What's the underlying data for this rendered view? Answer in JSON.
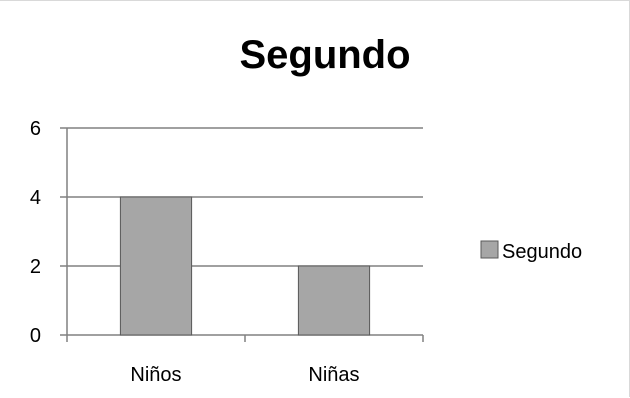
{
  "chart_data": {
    "type": "bar",
    "title": "Segundo",
    "categories": [
      "Niños",
      "Niñas"
    ],
    "series": [
      {
        "name": "Segundo",
        "values": [
          4,
          2
        ]
      }
    ],
    "ylim": [
      0,
      6
    ],
    "yticks": [
      0,
      2,
      4,
      6
    ],
    "grid": true,
    "legend_position": "right",
    "colors": {
      "bar_fill": "#a6a6a6",
      "bar_stroke": "#595959",
      "gridline": "#808080",
      "axis": "#808080"
    }
  }
}
